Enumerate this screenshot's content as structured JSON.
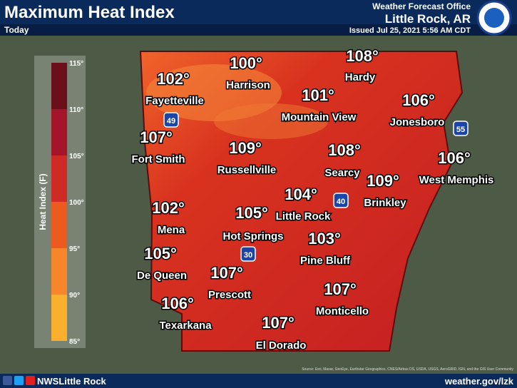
{
  "header": {
    "title": "Maximum Heat Index",
    "subtitle": "Today",
    "office": "Weather Forecast Office",
    "location": "Little Rock, AR",
    "issued": "Issued Jul 25, 2021 5:56 AM CDT"
  },
  "legend": {
    "title": "Heat Index (F)",
    "ticks": [
      "115°",
      "110°",
      "105°",
      "100°",
      "95°",
      "90°",
      "85°"
    ]
  },
  "cities": [
    {
      "name": "Fayetteville",
      "label": "102°"
    },
    {
      "name": "Harrison",
      "label": "100°"
    },
    {
      "name": "Hardy",
      "label": "108°"
    },
    {
      "name": "Mountain View",
      "label": "101°"
    },
    {
      "name": "Jonesboro",
      "label": "106°"
    },
    {
      "name": "Fort Smith",
      "label": "107°"
    },
    {
      "name": "Russellville",
      "label": "109°"
    },
    {
      "name": "Searcy",
      "label": "108°"
    },
    {
      "name": "West Memphis",
      "label": "106°"
    },
    {
      "name": "Brinkley",
      "label": "109°"
    },
    {
      "name": "Little Rock",
      "label": "104°"
    },
    {
      "name": "Mena",
      "label": "102°"
    },
    {
      "name": "Hot Springs",
      "label": "105°"
    },
    {
      "name": "Pine Bluff",
      "label": "103°"
    },
    {
      "name": "De Queen",
      "label": "105°"
    },
    {
      "name": "Prescott",
      "label": "107°"
    },
    {
      "name": "Monticello",
      "label": "107°"
    },
    {
      "name": "Texarkana",
      "label": "106°"
    },
    {
      "name": "El Dorado",
      "label": "107°"
    }
  ],
  "interstates": [
    "49",
    "40",
    "30",
    "55"
  ],
  "attribution": "Source: Esri, Maxar, GeoEye, Earthstar Geographics, CNES/Airbus DS, USDA, USGS, AeroGRID, IGN, and the GIS User Community",
  "footer": {
    "social": "NWSLittle Rock",
    "url": "weather.gov/lzk"
  }
}
